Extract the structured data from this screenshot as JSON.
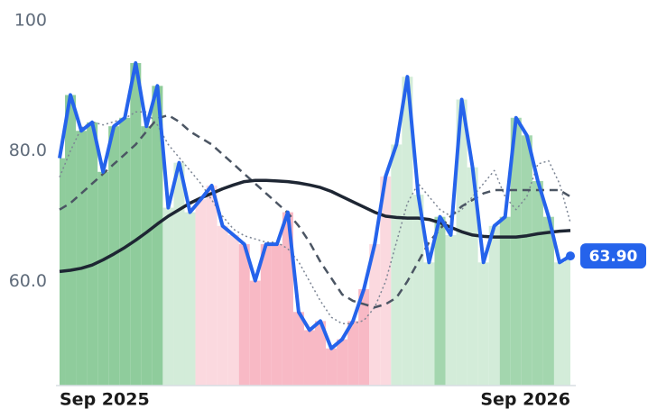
{
  "chart_data": {
    "type": "line",
    "categories": [
      "Sep 2025",
      null,
      null,
      null,
      null,
      null,
      null,
      null,
      null,
      null,
      null,
      null,
      null,
      null,
      null,
      null,
      null,
      null,
      null,
      null,
      null,
      null,
      null,
      null,
      null,
      null,
      null,
      null,
      null,
      null,
      null,
      null,
      null,
      null,
      null,
      null,
      null,
      null,
      null,
      null,
      null,
      null,
      null,
      null,
      null,
      null,
      null,
      "Sep 2026"
    ],
    "series": [
      {
        "color": "#2563eb",
        "style": "solid",
        "values": [
          78.9,
          88.6,
          83.1,
          84.4,
          76.8,
          83.8,
          85.1,
          93.5,
          83.8,
          90,
          71.3,
          78.2,
          70.6,
          72.6,
          74.7,
          68.5,
          67.1,
          65.7,
          60.1,
          65.7,
          65.7,
          70.6,
          55.3,
          52.5,
          53.9,
          49.7,
          51.1,
          53.9,
          58.8,
          65.7,
          76.1,
          81,
          91.4,
          73.3,
          62.9,
          69.9,
          67.1,
          87.9,
          77.5,
          62.9,
          68.5,
          69.9,
          85.1,
          82.4,
          75.4,
          69.9,
          62.9,
          63.9
        ]
      },
      {
        "color": "#1e2633",
        "style": "solid",
        "values": [
          61.5,
          61.7,
          62,
          62.5,
          63.3,
          64.2,
          65.2,
          66.3,
          67.5,
          68.8,
          70,
          71,
          72,
          72.8,
          73.5,
          74.2,
          74.8,
          75.3,
          75.5,
          75.5,
          75.4,
          75.3,
          75.1,
          74.8,
          74.4,
          73.8,
          73,
          72.2,
          71.4,
          70.6,
          70,
          69.8,
          69.7,
          69.7,
          69.5,
          69,
          68.3,
          67.6,
          67.1,
          66.9,
          66.8,
          66.8,
          66.8,
          67,
          67.3,
          67.5,
          67.7,
          67.8
        ]
      },
      {
        "color": "#4b5563",
        "style": "dashed",
        "values": [
          71,
          72,
          73.5,
          75,
          76.5,
          78,
          79.5,
          81,
          83,
          85,
          85.5,
          84.5,
          83,
          82,
          81,
          79.5,
          78,
          76.5,
          75,
          73.5,
          72,
          70.5,
          68.5,
          66,
          63,
          60.5,
          58,
          57,
          56.5,
          56,
          56.5,
          57.5,
          60,
          63,
          66,
          68,
          70,
          71.5,
          72.5,
          73.5,
          74,
          74,
          74,
          74,
          74,
          74,
          74,
          73
        ]
      },
      {
        "color": "#7c8594",
        "style": "dotted",
        "values": [
          76,
          80,
          83.5,
          84.5,
          84,
          84.5,
          85,
          86,
          86,
          84,
          81,
          79,
          77,
          75,
          72.5,
          70,
          68,
          67,
          66.5,
          66,
          66,
          65,
          63,
          60,
          57,
          54.5,
          53.5,
          53.5,
          54,
          56,
          60,
          66,
          72,
          75,
          73,
          71,
          70,
          71,
          73,
          75,
          77,
          73,
          71,
          73,
          78,
          78.5,
          75,
          69
        ]
      }
    ],
    "bands": [
      {
        "from": 0,
        "to": 10,
        "color": "#8fcc9c"
      },
      {
        "from": 10,
        "to": 13,
        "color": "#d3ecd9"
      },
      {
        "from": 13,
        "to": 17,
        "color": "#fbd9df"
      },
      {
        "from": 17,
        "to": 29,
        "color": "#f8b9c5"
      },
      {
        "from": 29,
        "to": 31,
        "color": "#fbd9df"
      },
      {
        "from": 31,
        "to": 35,
        "color": "#d3ecd9"
      },
      {
        "from": 35,
        "to": 36,
        "color": "#a3d6ae"
      },
      {
        "from": 36,
        "to": 41,
        "color": "#d3ecd9"
      },
      {
        "from": 41,
        "to": 46,
        "color": "#a3d6ae"
      },
      {
        "from": 46,
        "to": 48,
        "color": "#d3ecd9"
      }
    ],
    "last_value_label": "63.90",
    "ylim": [
      44,
      100
    ],
    "yticks": [
      {
        "value": 60,
        "label": "60.0"
      },
      {
        "value": 80,
        "label": "80.0"
      },
      100
    ]
  }
}
